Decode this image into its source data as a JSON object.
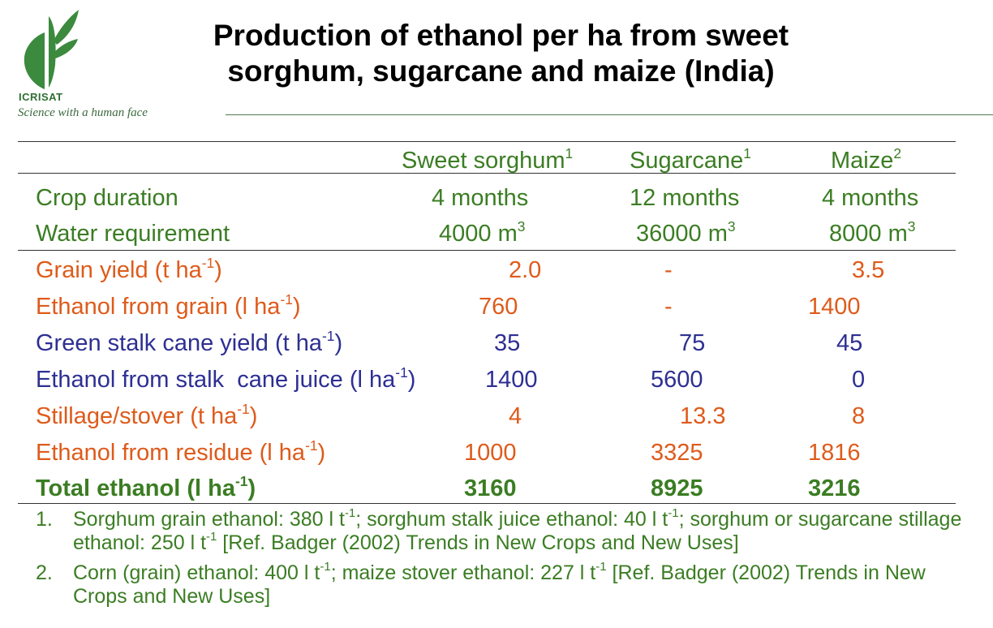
{
  "logo": {
    "name": "ICRISAT",
    "tagline": "Science with a human face",
    "icon": "leaf-logo-icon",
    "color": "#3b8a3e"
  },
  "title_line1": "Production of ethanol per ha from sweet",
  "title_line2": "sorghum, sugarcane and maize (India)",
  "colors": {
    "green": "#3b7d23",
    "orange": "#de5b1b",
    "blue": "#2d2f93"
  },
  "table": {
    "columns": [
      {
        "name": "Sweet sorghum",
        "sup": "1"
      },
      {
        "name": "Sugarcane",
        "sup": "1"
      },
      {
        "name": "Maize",
        "sup": "2"
      }
    ],
    "rows": [
      {
        "label": "Crop duration",
        "label_sup": "",
        "label_suffix": "",
        "values": [
          "4 months",
          "12 months",
          "4 months"
        ]
      },
      {
        "label": "Water requirement",
        "label_sup": "",
        "label_suffix": "",
        "values": [
          "4000 m",
          "36000 m",
          "8000 m"
        ],
        "value_sup": "3"
      },
      {
        "label": "Grain yield (t ha",
        "label_sup": "-1",
        "label_suffix": ")",
        "values": [
          "2.0",
          "-",
          "3.5"
        ]
      },
      {
        "label": "Ethanol from grain (l ha",
        "label_sup": "-1",
        "label_suffix": ")",
        "values": [
          "760",
          "-",
          "1400"
        ]
      },
      {
        "label": "Green stalk cane yield (t ha",
        "label_sup": "-1",
        "label_suffix": ")",
        "values": [
          "35",
          "75",
          "45"
        ]
      },
      {
        "label": "Ethanol from stalk  cane juice (l ha",
        "label_sup": "-1",
        "label_suffix": ")",
        "values": [
          "1400",
          "5600",
          "0"
        ]
      },
      {
        "label": "Stillage/stover (t ha",
        "label_sup": "-1",
        "label_suffix": ")",
        "values": [
          "4",
          "13.3",
          "8"
        ]
      },
      {
        "label": "Ethanol from residue (l ha",
        "label_sup": "-1",
        "label_suffix": ")",
        "values": [
          "1000",
          "3325",
          "1816"
        ]
      },
      {
        "label": "Total ethanol (l ha",
        "label_sup": "-1",
        "label_suffix": ")",
        "values": [
          "3160",
          "8925",
          "3216"
        ]
      }
    ]
  },
  "footnotes": [
    {
      "num": "1.",
      "p1": "Sorghum grain ethanol: 380 l t",
      "s1": "-1",
      "p2": "; sorghum stalk juice ethanol: 40 l t",
      "s2": "-1",
      "p3": "; sorghum or sugarcane stillage ethanol: 250 l t",
      "s3": "-1",
      "p4": " [Ref. Badger (2002) Trends in New Crops and New Uses]"
    },
    {
      "num": "2.",
      "p1": "Corn (grain) ethanol: 400 l t",
      "s1": "-1",
      "p2": "; maize stover ethanol: 227 l t",
      "s2": "-1",
      "p3": " [Ref. Badger (2002) Trends in New Crops and New Uses]"
    }
  ]
}
